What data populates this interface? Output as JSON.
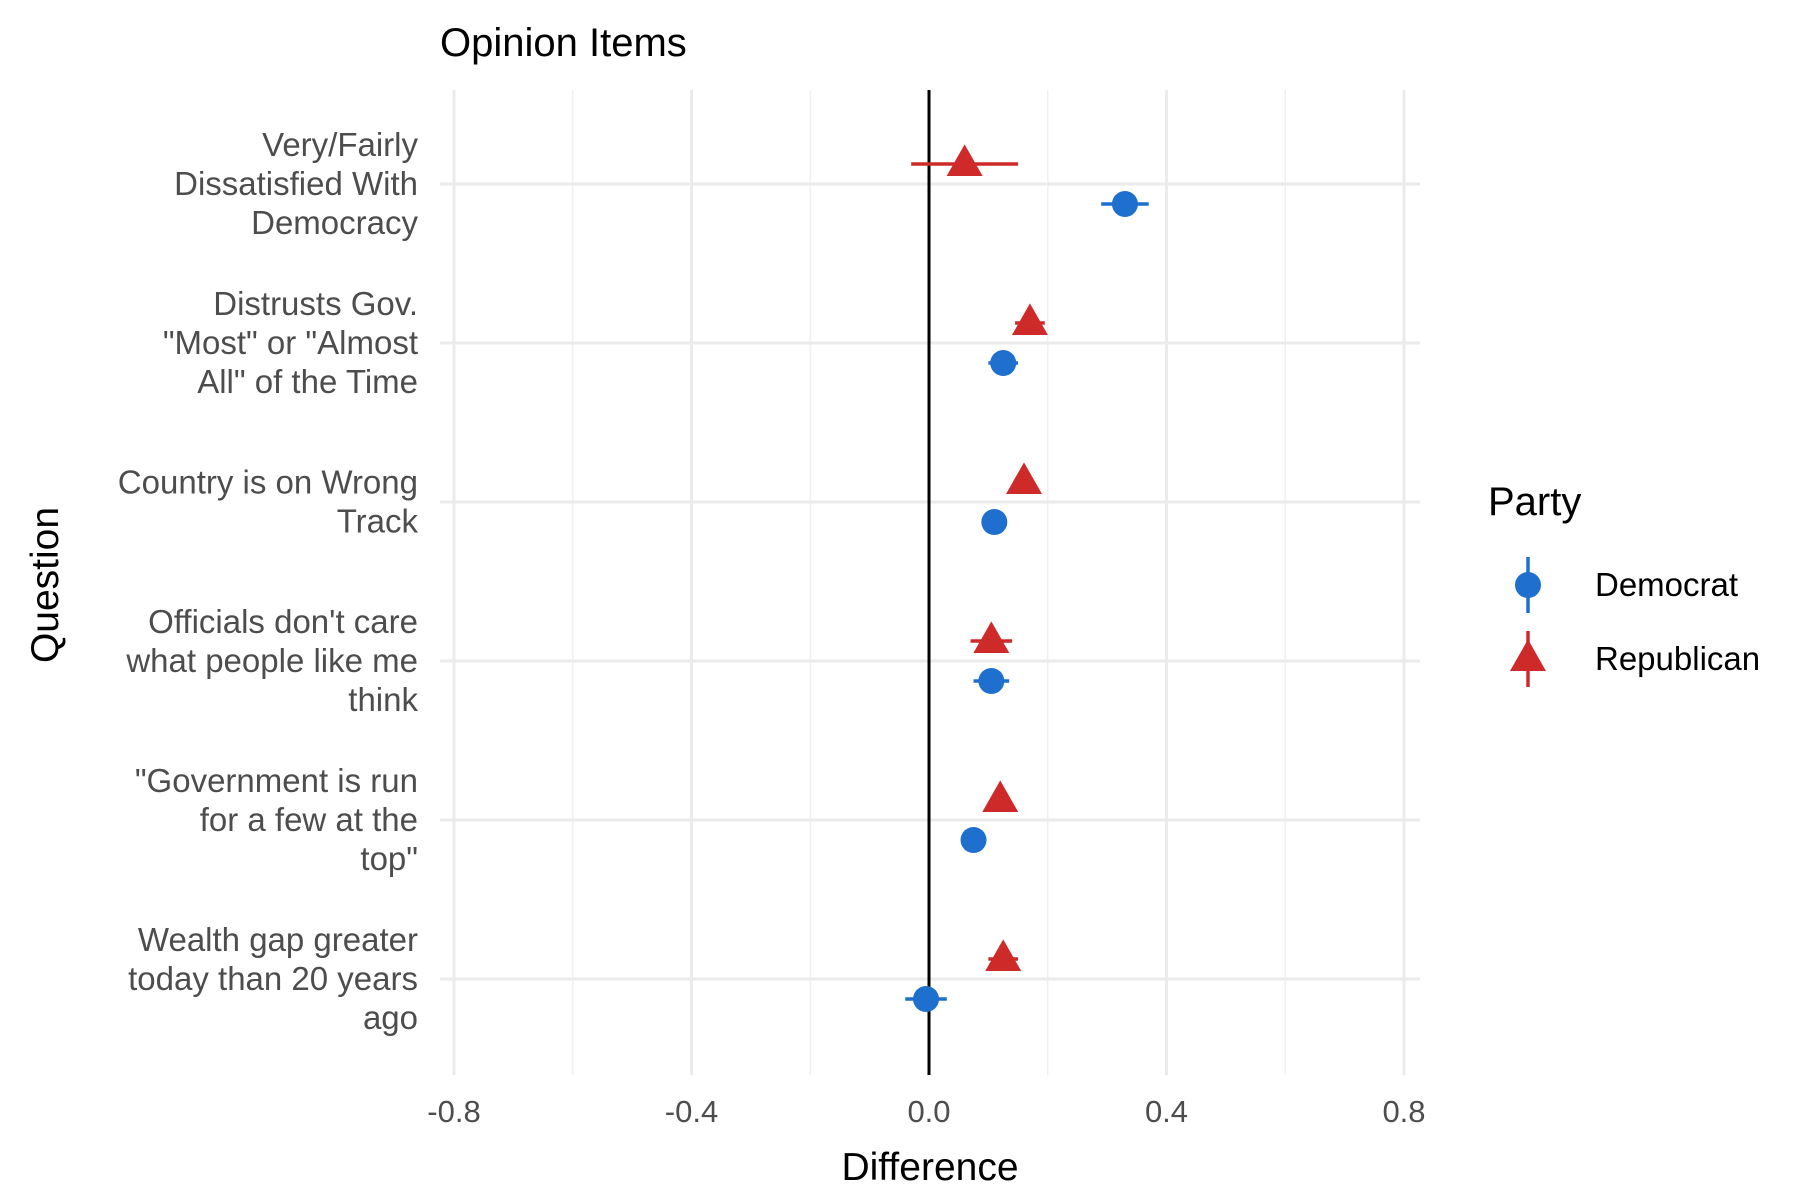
{
  "chart_data": {
    "type": "scatter",
    "title": "Opinion Items",
    "xlabel": "Difference",
    "ylabel": "Question",
    "xlim": [
      -0.8,
      0.8
    ],
    "x_ticks": [
      -0.8,
      -0.4,
      0.0,
      0.4,
      0.8
    ],
    "x_tick_labels": [
      "-0.8",
      "-0.4",
      "0.0",
      "0.4",
      "0.8"
    ],
    "reference_line": 0,
    "grid": true,
    "legend": {
      "title": "Party",
      "position": "right"
    },
    "categories": [
      [
        "Very/Fairly",
        "Dissatisfied With",
        "Democracy"
      ],
      [
        "Distrusts Gov.",
        "\"Most\" or \"Almost",
        "All\" of the Time"
      ],
      [
        "Country is on Wrong",
        "Track"
      ],
      [
        "Officials don't care",
        "what people like me",
        "think"
      ],
      [
        "\"Government is run",
        "for a few at the",
        "top\""
      ],
      [
        "Wealth gap greater",
        "today than 20 years",
        "ago"
      ]
    ],
    "series": [
      {
        "name": "Democrat",
        "color": "#1f6fcf",
        "marker": "circle",
        "values": [
          0.33,
          0.125,
          0.11,
          0.105,
          0.075,
          -0.005
        ],
        "ci_low": [
          0.29,
          0.1,
          0.095,
          0.075,
          0.065,
          -0.04
        ],
        "ci_high": [
          0.37,
          0.15,
          0.125,
          0.135,
          0.085,
          0.03
        ]
      },
      {
        "name": "Republican",
        "color": "#cf2a2a",
        "marker": "triangle",
        "values": [
          0.06,
          0.17,
          0.16,
          0.105,
          0.12,
          0.125
        ],
        "ci_low": [
          -0.03,
          0.145,
          0.145,
          0.07,
          0.105,
          0.1
        ],
        "ci_high": [
          0.15,
          0.195,
          0.175,
          0.14,
          0.135,
          0.15
        ]
      }
    ]
  }
}
